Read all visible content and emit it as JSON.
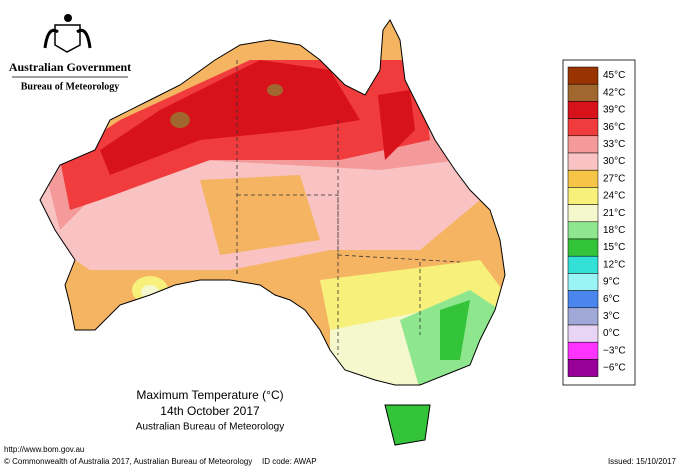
{
  "header": {
    "government": "Australian Government",
    "bureau": "Bureau of Meteorology"
  },
  "legend": {
    "items": [
      {
        "label": "45°C",
        "color": "#993300"
      },
      {
        "label": "42°C",
        "color": "#a0672e"
      },
      {
        "label": "39°C",
        "color": "#d7121a"
      },
      {
        "label": "36°C",
        "color": "#f03c3c"
      },
      {
        "label": "33°C",
        "color": "#f59a9a"
      },
      {
        "label": "30°C",
        "color": "#f9c3c3"
      },
      {
        "label": "27°C",
        "color": "#f6c548"
      },
      {
        "label": "24°C",
        "color": "#f7f07a"
      },
      {
        "label": "21°C",
        "color": "#f4f8cc"
      },
      {
        "label": "18°C",
        "color": "#8ee68e"
      },
      {
        "label": "15°C",
        "color": "#33c43a"
      },
      {
        "label": "12°C",
        "color": "#33e0d8"
      },
      {
        "label": "9°C",
        "color": "#99f5f5"
      },
      {
        "label": "6°C",
        "color": "#4a86ee"
      },
      {
        "label": "3°C",
        "color": "#a0a8d8"
      },
      {
        "label": "0°C",
        "color": "#e8d4f4"
      },
      {
        "label": "−3°C",
        "color": "#ff33ff"
      },
      {
        "label": "−6°C",
        "color": "#990099"
      }
    ]
  },
  "title": {
    "line1": "Maximum Temperature (°C)",
    "line2": "14th October 2017",
    "line3": "Australian Bureau of Meteorology"
  },
  "footer": {
    "url": "http://www.bom.gov.au",
    "copyright": "© Commonwealth of Australia 2017, Australian Bureau of Meteorology",
    "id_code": "ID code: AWAP",
    "issued": "Issued: 15/10/2017"
  }
}
